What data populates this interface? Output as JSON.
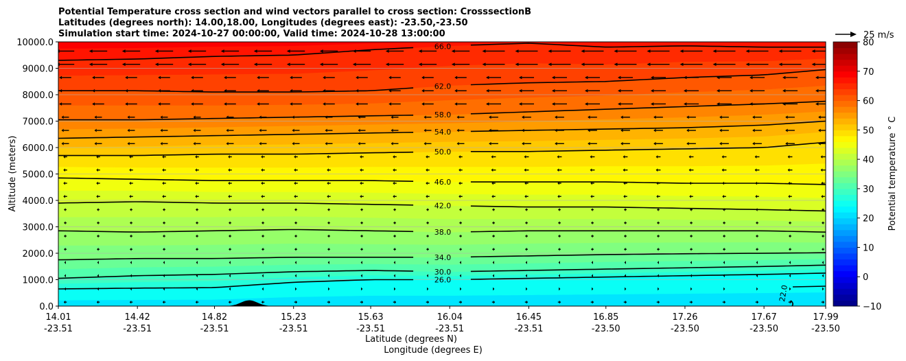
{
  "chart_data": {
    "type": "heatmap",
    "title_lines": [
      "Potential Temperature cross section and wind vectors parallel to cross section: CrosssectionB",
      "Latitudes (degrees north): 14.00,18.00, Longitudes (degrees east): -23.50,-23.50",
      "Simulation start time: 2024-10-27 00:00:00, Valid time: 2024-10-28 13:00:00"
    ],
    "xlabel_lines": [
      "Latitude (degrees N)",
      "Longitude (degrees E)"
    ],
    "ylabel": "Altitude (meters)",
    "x_ticks": [
      {
        "lat": "14.01",
        "lon": "-23.51",
        "v": 14.01
      },
      {
        "lat": "14.42",
        "lon": "-23.51",
        "v": 14.42
      },
      {
        "lat": "14.82",
        "lon": "-23.51",
        "v": 14.82
      },
      {
        "lat": "15.23",
        "lon": "-23.51",
        "v": 15.23
      },
      {
        "lat": "15.63",
        "lon": "-23.51",
        "v": 15.63
      },
      {
        "lat": "16.04",
        "lon": "-23.51",
        "v": 16.04
      },
      {
        "lat": "16.45",
        "lon": "-23.51",
        "v": 16.45
      },
      {
        "lat": "16.85",
        "lon": "-23.50",
        "v": 16.85
      },
      {
        "lat": "17.26",
        "lon": "-23.50",
        "v": 17.26
      },
      {
        "lat": "17.67",
        "lon": "-23.50",
        "v": 17.67
      },
      {
        "lat": "17.99",
        "lon": "-23.50",
        "v": 17.99
      }
    ],
    "xlim": [
      14.01,
      17.99
    ],
    "y_ticks": [
      "0.0",
      "1000.0",
      "2000.0",
      "3000.0",
      "4000.0",
      "5000.0",
      "6000.0",
      "7000.0",
      "8000.0",
      "9000.0",
      "10000.0"
    ],
    "ylim": [
      0,
      10000
    ],
    "grid": true,
    "contours": [
      {
        "label": "22.0",
        "level": 22
      },
      {
        "label": "26.0",
        "level": 26,
        "y": [
          650,
          680,
          700,
          900,
          1000,
          1000,
          1050,
          1100,
          1150,
          1200,
          1250
        ]
      },
      {
        "label": "30.0",
        "level": 30,
        "y": [
          1050,
          1150,
          1200,
          1300,
          1350,
          1300,
          1350,
          1400,
          1450,
          1500,
          1550
        ]
      },
      {
        "label": "34.0",
        "level": 34,
        "y": [
          1750,
          1800,
          1800,
          1850,
          1850,
          1850,
          1900,
          1950,
          1980,
          2000,
          2020
        ]
      },
      {
        "label": "38.0",
        "level": 38,
        "y": [
          2850,
          2800,
          2850,
          2900,
          2850,
          2800,
          2850,
          2850,
          2850,
          2850,
          2800
        ]
      },
      {
        "label": "42.0",
        "level": 42,
        "y": [
          3900,
          3950,
          3900,
          3900,
          3850,
          3800,
          3750,
          3750,
          3700,
          3650,
          3600
        ]
      },
      {
        "label": "46.0",
        "level": 46,
        "y": [
          4850,
          4800,
          4750,
          4750,
          4750,
          4700,
          4700,
          4700,
          4650,
          4650,
          4600
        ]
      },
      {
        "label": "50.0",
        "level": 50,
        "y": [
          5700,
          5700,
          5750,
          5750,
          5800,
          5850,
          5850,
          5900,
          5950,
          6000,
          6200
        ]
      },
      {
        "label": "54.0",
        "level": 54,
        "y": [
          6350,
          6400,
          6450,
          6500,
          6550,
          6600,
          6650,
          6700,
          6750,
          6850,
          7000
        ]
      },
      {
        "label": "58.0",
        "level": 58,
        "y": [
          7050,
          7050,
          7100,
          7150,
          7200,
          7250,
          7350,
          7450,
          7550,
          7650,
          7750
        ]
      },
      {
        "label": "62.0",
        "level": 62,
        "y": [
          8150,
          8150,
          8100,
          8100,
          8150,
          8350,
          8450,
          8500,
          8650,
          8750,
          8950
        ]
      },
      {
        "label": "66.0",
        "level": 66,
        "y": [
          9300,
          9350,
          9450,
          9500,
          9700,
          9850,
          9950,
          9800,
          9850,
          9800,
          9800
        ]
      }
    ],
    "colorbar": {
      "label": "Potential temperature $^\\circ$C",
      "ticks": [
        "80",
        "70",
        "60",
        "50",
        "40",
        "30",
        "20",
        "10",
        "0",
        "−10"
      ],
      "range": [
        -10,
        80
      ]
    },
    "quiver_key": {
      "label": "25 m/s",
      "speed": 25
    },
    "terrain": {
      "peak_lat": 15.0,
      "peak_height": 220
    }
  }
}
